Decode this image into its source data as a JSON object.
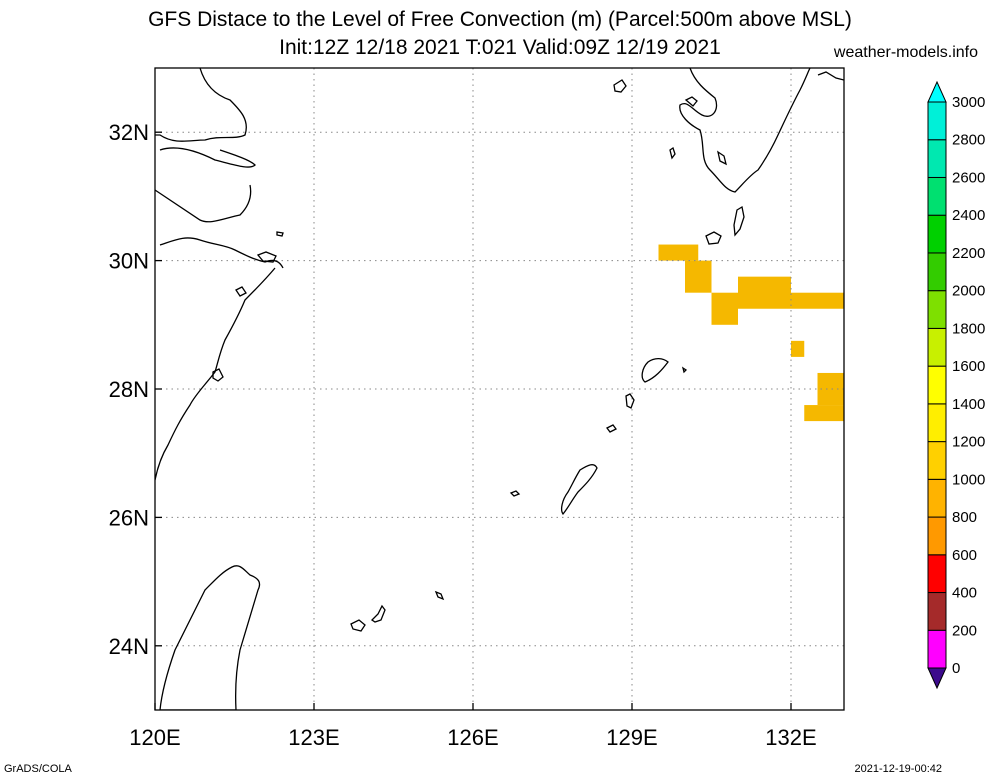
{
  "title": {
    "line1": "GFS Distace to the Level of Free Convection (m) (Parcel:500m above MSL)",
    "line2": "Init:12Z 12/18 2021 T:021 Valid:09Z 12/19 2021",
    "site": "weather-models.info"
  },
  "footer": {
    "left": "GrADS/COLA",
    "right": "2021-12-19-00:42"
  },
  "map": {
    "lon_range": [
      120,
      133
    ],
    "lat_range": [
      23,
      33
    ],
    "lon_ticks": [
      120,
      123,
      126,
      129,
      132
    ],
    "lat_ticks": [
      24,
      26,
      28,
      30,
      32
    ],
    "lon_labels": [
      "120E",
      "123E",
      "126E",
      "129E",
      "132E"
    ],
    "lat_labels": [
      "24N",
      "26N",
      "28N",
      "30N",
      "32N"
    ],
    "grid": "dotted",
    "field_cells": [
      {
        "lon0": 129.5,
        "lat0": 30.0,
        "lon1": 130.25,
        "lat1": 30.25,
        "value": 1000
      },
      {
        "lon0": 130.0,
        "lat0": 29.5,
        "lon1": 130.5,
        "lat1": 30.0,
        "value": 1000
      },
      {
        "lon0": 130.5,
        "lat0": 29.0,
        "lon1": 131.0,
        "lat1": 29.5,
        "value": 1000
      },
      {
        "lon0": 131.0,
        "lat0": 29.25,
        "lon1": 132.0,
        "lat1": 29.75,
        "value": 1000
      },
      {
        "lon0": 132.0,
        "lat0": 29.25,
        "lon1": 133.0,
        "lat1": 29.5,
        "value": 1000
      },
      {
        "lon0": 132.0,
        "lat0": 28.5,
        "lon1": 132.25,
        "lat1": 28.75,
        "value": 1000
      },
      {
        "lon0": 132.5,
        "lat0": 27.75,
        "lon1": 133.0,
        "lat1": 28.25,
        "value": 1000
      },
      {
        "lon0": 132.25,
        "lat0": 27.5,
        "lon1": 133.0,
        "lat1": 27.75,
        "value": 1000
      }
    ],
    "field_color": "#f5b800"
  },
  "colorbar": {
    "labels": [
      "0",
      "200",
      "400",
      "600",
      "800",
      "1000",
      "1200",
      "1400",
      "1600",
      "1800",
      "2000",
      "2200",
      "2400",
      "2600",
      "2800",
      "3000"
    ],
    "colors": [
      "#3c0a8c",
      "#ff00ff",
      "#a52a2a",
      "#ff0000",
      "#ff9900",
      "#ffb300",
      "#ffd000",
      "#ffee00",
      "#ffff00",
      "#c8f000",
      "#7ee000",
      "#33cc00",
      "#00d000",
      "#00e070",
      "#00e8b0",
      "#00f0d8",
      "#00ffff"
    ]
  }
}
